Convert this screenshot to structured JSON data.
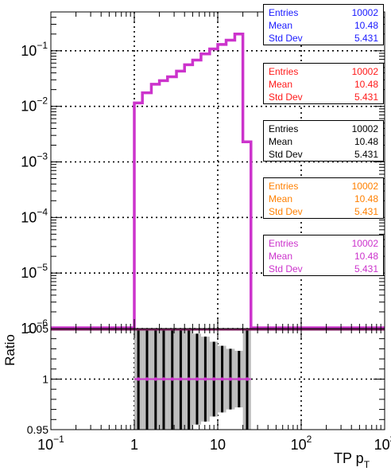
{
  "colors": {
    "blue": "#1a1aff",
    "red": "#ff1a1a",
    "black": "#000000",
    "orange": "#ff8000",
    "magenta": "#cc33cc",
    "error_band": "#bdbdbd",
    "ratio_line": "#7a1f5c"
  },
  "stats_boxes": [
    {
      "color": "blue",
      "labels": [
        "Entries",
        "Mean",
        "Std Dev"
      ],
      "values": [
        "10002",
        "10.48",
        "5.431"
      ]
    },
    {
      "color": "red",
      "labels": [
        "Entries",
        "Mean",
        "Std Dev"
      ],
      "values": [
        "10002",
        "10.48",
        "5.431"
      ]
    },
    {
      "color": "black",
      "labels": [
        "Entries",
        "Mean",
        "Std Dev"
      ],
      "values": [
        "10002",
        "10.48",
        "5.431"
      ]
    },
    {
      "color": "orange",
      "labels": [
        "Entries",
        "Mean",
        "Std Dev"
      ],
      "values": [
        "10002",
        "10.48",
        "5.431"
      ]
    },
    {
      "color": "magenta",
      "labels": [
        "Entries",
        "Mean",
        "Std Dev"
      ],
      "values": [
        "10002",
        "10.48",
        "5.431"
      ]
    }
  ],
  "chart_data": [
    {
      "type": "line",
      "step": true,
      "x_scale": "log",
      "y_scale": "log",
      "xlim": [
        0.1,
        1000
      ],
      "ylim": [
        1e-06,
        0.5
      ],
      "grid": true,
      "ytick_labels": [
        {
          "base": "10",
          "exp": "−6"
        },
        {
          "base": "10",
          "exp": "−5"
        },
        {
          "base": "10",
          "exp": "−4"
        },
        {
          "base": "10",
          "exp": "−3"
        },
        {
          "base": "10",
          "exp": "−2"
        },
        {
          "base": "10",
          "exp": "−1"
        }
      ],
      "series": [
        {
          "color": "magenta",
          "bins": [
            [
              1,
              1.25,
              0.0115
            ],
            [
              1.25,
              1.6,
              0.0175
            ],
            [
              1.6,
              2.0,
              0.025
            ],
            [
              2.0,
              2.5,
              0.029
            ],
            [
              2.5,
              3.2,
              0.034
            ],
            [
              3.2,
              4.0,
              0.043
            ],
            [
              4.0,
              5.0,
              0.056
            ],
            [
              5.0,
              6.3,
              0.068
            ],
            [
              6.3,
              8.0,
              0.088
            ],
            [
              8.0,
              10.0,
              0.108
            ],
            [
              10.0,
              12.6,
              0.13
            ],
            [
              12.6,
              16.0,
              0.155
            ],
            [
              16.0,
              20.0,
              0.2
            ],
            [
              20.0,
              25.0,
              0.0023
            ]
          ]
        }
      ]
    },
    {
      "type": "scatter",
      "x_scale": "log",
      "xlim": [
        0.1,
        1000
      ],
      "ylim": [
        0.95,
        1.05
      ],
      "grid": true,
      "ylabel": "Ratio",
      "xlabel": {
        "text": "TP p",
        "sub": "T"
      },
      "ytick_labels": [
        "0.95",
        "1",
        "1.05"
      ],
      "xtick_labels": [
        {
          "base": "10",
          "exp": "−1"
        },
        {
          "base": "1",
          "exp": ""
        },
        {
          "base": "10",
          "exp": ""
        },
        {
          "base": "10",
          "exp": "2"
        },
        {
          "base": "10",
          "exp": "3"
        }
      ],
      "series": [
        {
          "color": "magenta",
          "x": [
            1.12,
            1.42,
            1.8,
            2.25,
            2.85,
            3.6,
            4.5,
            5.65,
            7.1,
            9.0,
            11.3,
            14.2,
            18.0,
            22.5
          ],
          "y": [
            1,
            1,
            1,
            1,
            1,
            1,
            1,
            1,
            1,
            1,
            1,
            1,
            1,
            1
          ],
          "err": [
            0.3,
            0.3,
            0.3,
            0.3,
            0.3,
            0.055,
            0.05,
            0.045,
            0.042,
            0.037,
            0.033,
            0.03,
            0.028,
            0.3
          ]
        }
      ]
    }
  ]
}
